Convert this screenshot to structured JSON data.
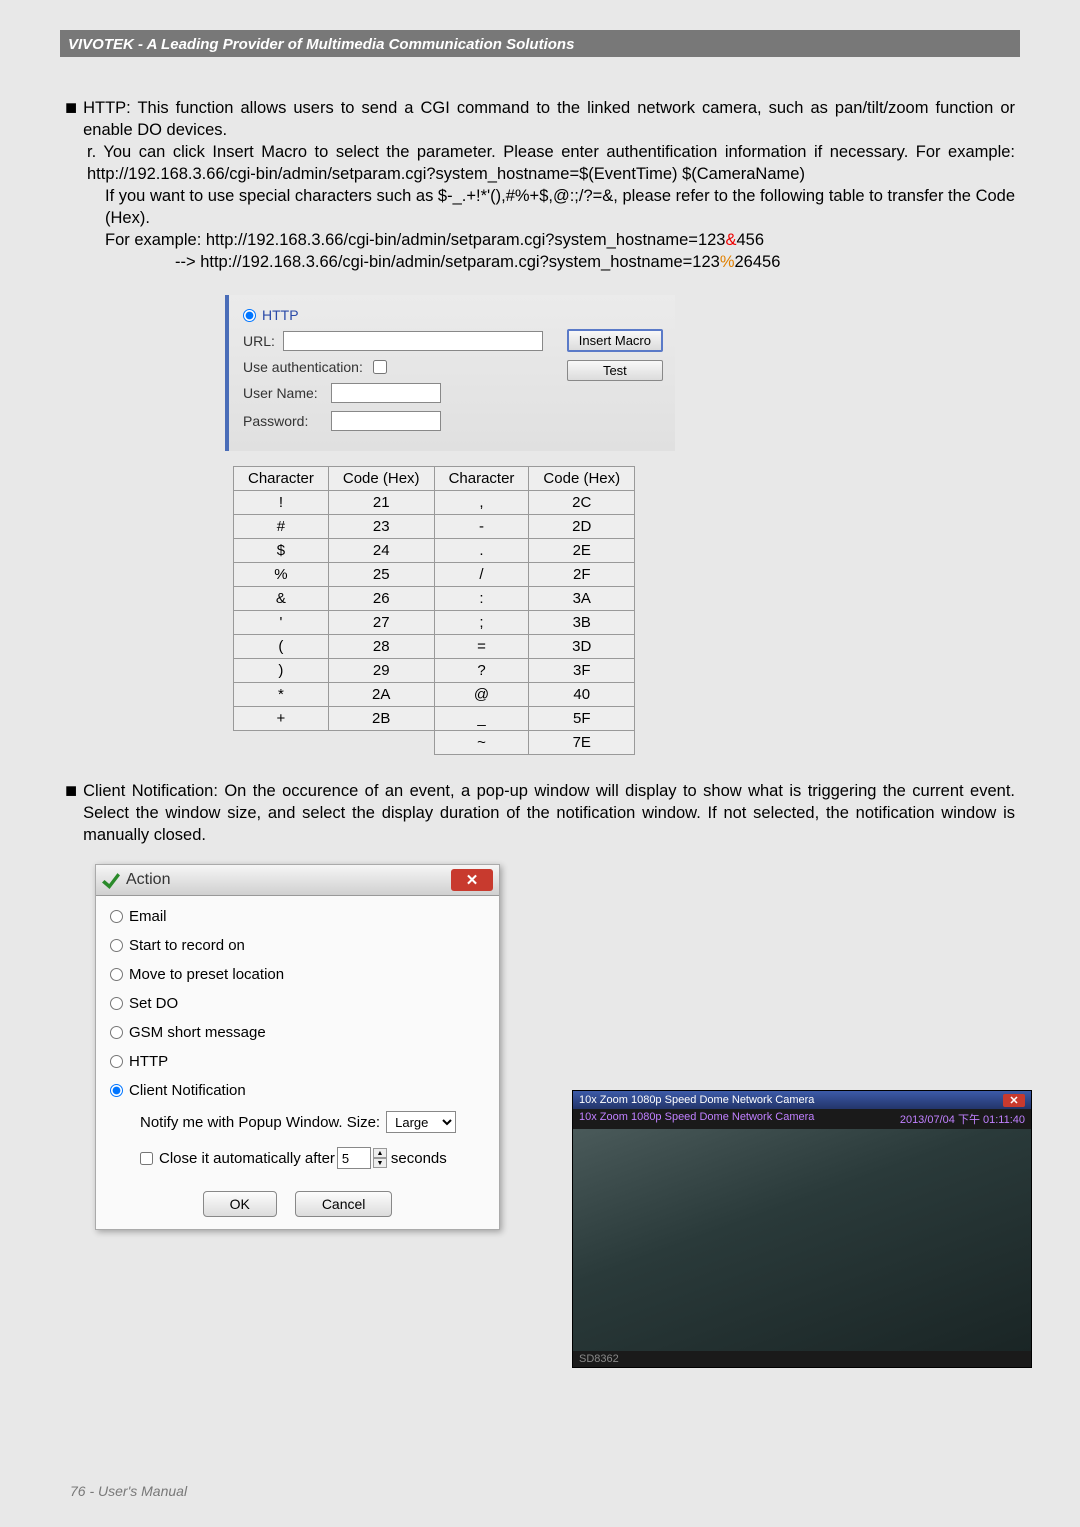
{
  "header": {
    "title": "VIVOTEK - A Leading Provider of Multimedia Communication Solutions"
  },
  "http_section": {
    "bullet": "HTTP: This function allows users to send a CGI command to the linked network camera, such as pan/tilt/zoom function or enable DO devices.",
    "sub_r": "r. You can click Insert Macro to select the parameter. Please enter authentification information if necessary. For example: http://192.168.3.66/cgi-bin/admin/setparam.cgi?system_hostname=$(EventTime) $(CameraName)",
    "special1": "If you want to use special characters such as $-_.+!*'(),#%+$,@:;/?=&, please refer to the following table to transfer the Code (Hex).",
    "example_pre": "For example: http://192.168.3.66/cgi-bin/admin/setparam.cgi?system_hostname=123",
    "amp": "&",
    "example_post": "456",
    "arrow": "--> http://192.168.3.66/cgi-bin/admin/setparam.cgi?system_hostname=123",
    "pct": "%",
    "arrow_post": "26456"
  },
  "http_panel": {
    "radio_label": "HTTP",
    "url_label": "URL:",
    "auth_label": "Use authentication:",
    "user_label": "User Name:",
    "pass_label": "Password:",
    "insert_btn": "Insert Macro",
    "test_btn": "Test"
  },
  "hex_table": {
    "columns": [
      "Character",
      "Code (Hex)",
      "Character",
      "Code (Hex)"
    ],
    "rows": [
      [
        "!",
        "21",
        ",",
        "2C"
      ],
      [
        "#",
        "23",
        "-",
        "2D"
      ],
      [
        "$",
        "24",
        ".",
        "2E"
      ],
      [
        "%",
        "25",
        "/",
        "2F"
      ],
      [
        "&",
        "26",
        ":",
        "3A"
      ],
      [
        "'",
        "27",
        ";",
        "3B"
      ],
      [
        "(",
        "28",
        "=",
        "3D"
      ],
      [
        ")",
        "29",
        "?",
        "3F"
      ],
      [
        "*",
        "2A",
        "@",
        "40"
      ],
      [
        "+",
        "2B",
        "_",
        "5F"
      ],
      [
        "",
        "",
        "~",
        "7E"
      ]
    ]
  },
  "client_notif": {
    "bullet": "Client Notification: On the occurence of an event, a pop-up window will display to show what is triggering the current event. Select the window size, and select the display duration of the notification window. If not selected, the notification window is manually closed."
  },
  "action_dialog": {
    "title": "Action",
    "options": {
      "email": "Email",
      "record": "Start to record on",
      "preset": "Move to preset location",
      "setdo": "Set DO",
      "gsm": "GSM short message",
      "http": "HTTP",
      "client": "Client Notification"
    },
    "notify_label_pre": "Notify me with  Popup Window. Size:",
    "size_value": "Large",
    "close_label": "Close it automatically after",
    "close_value": "5",
    "seconds": "seconds",
    "ok": "OK",
    "cancel": "Cancel"
  },
  "camera": {
    "tab": "10x Zoom 1080p Speed Dome Network Camera",
    "overlay_left": "10x Zoom 1080p Speed Dome Network Camera",
    "overlay_right": "2013/07/04  下午 01:11:40",
    "footer": "SD8362"
  },
  "page_footer": {
    "text": "76 - User's Manual"
  }
}
